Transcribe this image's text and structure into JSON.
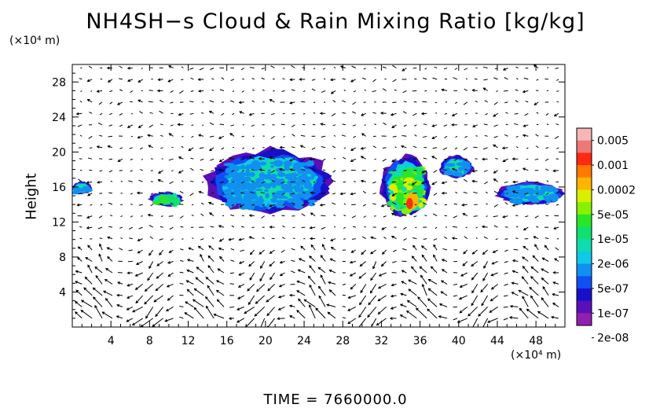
{
  "chart_data": {
    "type": "heatmap",
    "title": "NH4SH−s Cloud & Rain Mixing Ratio [kg/kg]",
    "ylabel": "Height",
    "x_unit": "(×10⁴ m)",
    "y_unit": "(×10⁴ m)",
    "xlim": [
      0,
      51
    ],
    "ylim": [
      0,
      30
    ],
    "x_ticks": [
      4,
      8,
      12,
      16,
      20,
      24,
      28,
      32,
      36,
      40,
      44,
      48
    ],
    "y_ticks": [
      4,
      8,
      12,
      16,
      20,
      24,
      28
    ],
    "colorbar": {
      "labels": [
        "0.005",
        "0.001",
        "0.0002",
        "5e-05",
        "1e-05",
        "2e-06",
        "5e-07",
        "1e-07",
        "2e-08"
      ],
      "colors": [
        "#f7b6b6",
        "#ee7878",
        "#ff2a10",
        "#ff7a00",
        "#ffb400",
        "#d8f000",
        "#88f000",
        "#28e628",
        "#10e070",
        "#10dcb0",
        "#10c8e8",
        "#1090f0",
        "#1050f0",
        "#1810c8",
        "#5a10b8",
        "#9020b0"
      ]
    },
    "cloud_regions": [
      {
        "x": [
          0,
          2
        ],
        "y": [
          15.2,
          16.6
        ],
        "level": "1e-07"
      },
      {
        "x": [
          8,
          11.5
        ],
        "y": [
          13.8,
          15.4
        ],
        "level": "5e-05"
      },
      {
        "x": [
          14,
          27
        ],
        "y": [
          13,
          20.2
        ],
        "level": "2e-06"
      },
      {
        "x": [
          32,
          37
        ],
        "y": [
          12.5,
          19.5
        ],
        "level": "0.0002"
      },
      {
        "x": [
          38,
          41.5
        ],
        "y": [
          17,
          19.5
        ],
        "level": "1e-07"
      },
      {
        "x": [
          44,
          51
        ],
        "y": [
          14,
          16.5
        ],
        "level": "1e-06"
      }
    ],
    "vectors": "wind field (unlabeled)"
  },
  "footer": {
    "time_label": "TIME  =  7660000.0"
  }
}
